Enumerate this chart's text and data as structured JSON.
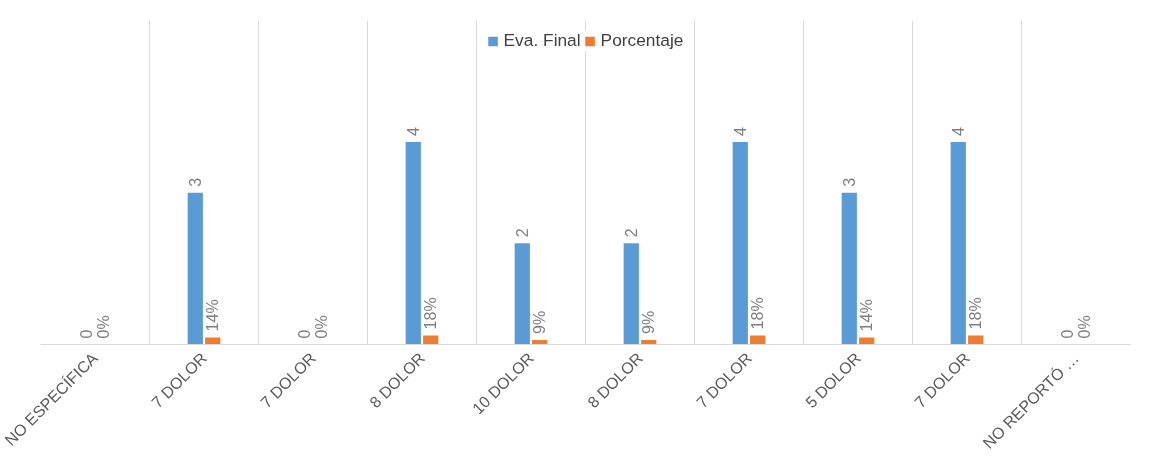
{
  "chart_data": {
    "type": "bar",
    "categories": [
      "NO ESPECÍFICA",
      "7 DOLOR",
      "7 DOLOR",
      "8 DOLOR",
      "10 DOLOR",
      "8 DOLOR",
      "7 DOLOR",
      "5 DOLOR",
      "7 DOLOR",
      "NO REPORTÓ …"
    ],
    "series": [
      {
        "name": "Eva. Final",
        "color": "#5b9bd5",
        "values": [
          0,
          3,
          0,
          4,
          2,
          2,
          4,
          3,
          4,
          0
        ],
        "value_labels": [
          "0",
          "3",
          "0",
          "4",
          "2",
          "2",
          "4",
          "3",
          "4",
          "0"
        ]
      },
      {
        "name": "Porcentaje",
        "color": "#ed7d31",
        "values": [
          0,
          0.14,
          0,
          0.18,
          0.09,
          0.09,
          0.18,
          0.14,
          0.18,
          0
        ],
        "value_labels": [
          "0%",
          "14%",
          "0%",
          "18%",
          "9%",
          "9%",
          "18%",
          "14%",
          "18%",
          "0%"
        ]
      }
    ],
    "grid": "x",
    "legend": "top",
    "tick_labels": "x"
  }
}
